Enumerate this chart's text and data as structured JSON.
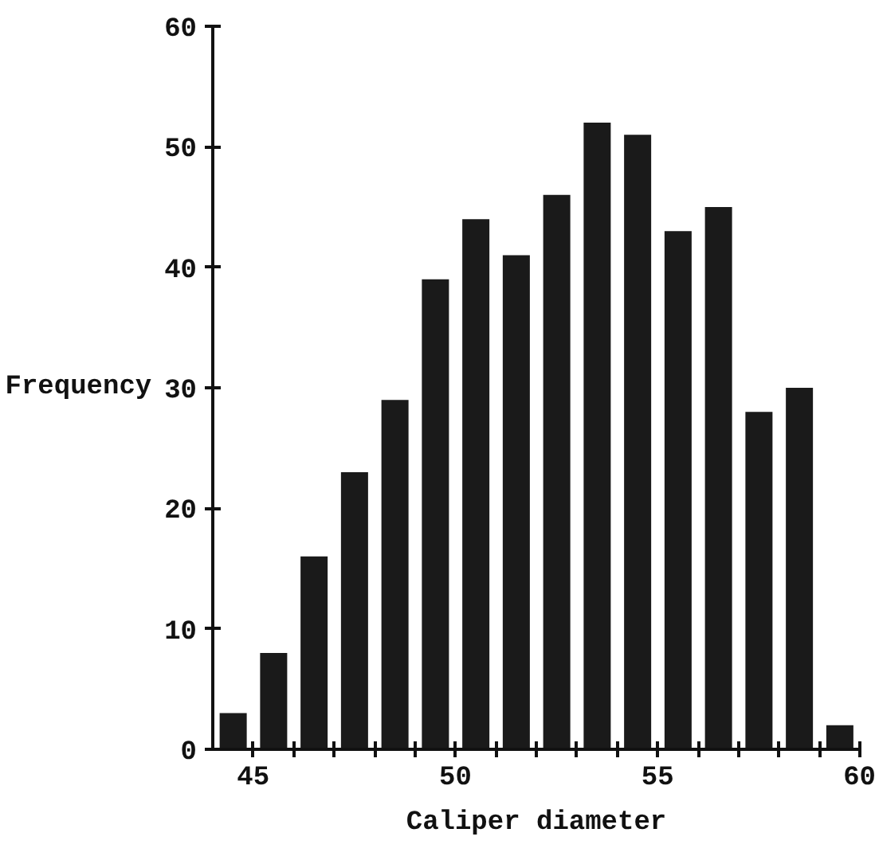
{
  "chart_data": {
    "type": "histogram",
    "xlabel": "Caliper diameter",
    "ylabel": "Frequency",
    "bins": [
      44,
      45,
      46,
      47,
      48,
      49,
      50,
      51,
      52,
      53,
      54,
      55,
      56,
      57,
      58,
      59,
      60
    ],
    "values": [
      3,
      8,
      16,
      23,
      29,
      39,
      44,
      41,
      46,
      52,
      51,
      43,
      45,
      28,
      30,
      2
    ],
    "color": "#1a1a1a",
    "xlim": [
      44,
      60
    ],
    "xticks": [
      45,
      {
        "value": 46,
        "label": null
      },
      {
        "value": 47,
        "label": null
      },
      {
        "value": 48,
        "label": null
      },
      {
        "value": 49,
        "label": null
      },
      50,
      {
        "value": 51,
        "label": null
      },
      {
        "value": 52,
        "label": null
      },
      {
        "value": 53,
        "label": null
      },
      {
        "value": 54,
        "label": null
      },
      55,
      {
        "value": 56,
        "label": null
      },
      {
        "value": 57,
        "label": null
      },
      {
        "value": 58,
        "label": null
      },
      {
        "value": 59,
        "label": null
      },
      60
    ],
    "ylim": [
      0,
      60
    ],
    "yticks": [
      0,
      10,
      20,
      30,
      40,
      50,
      60
    ],
    "grid": false
  }
}
